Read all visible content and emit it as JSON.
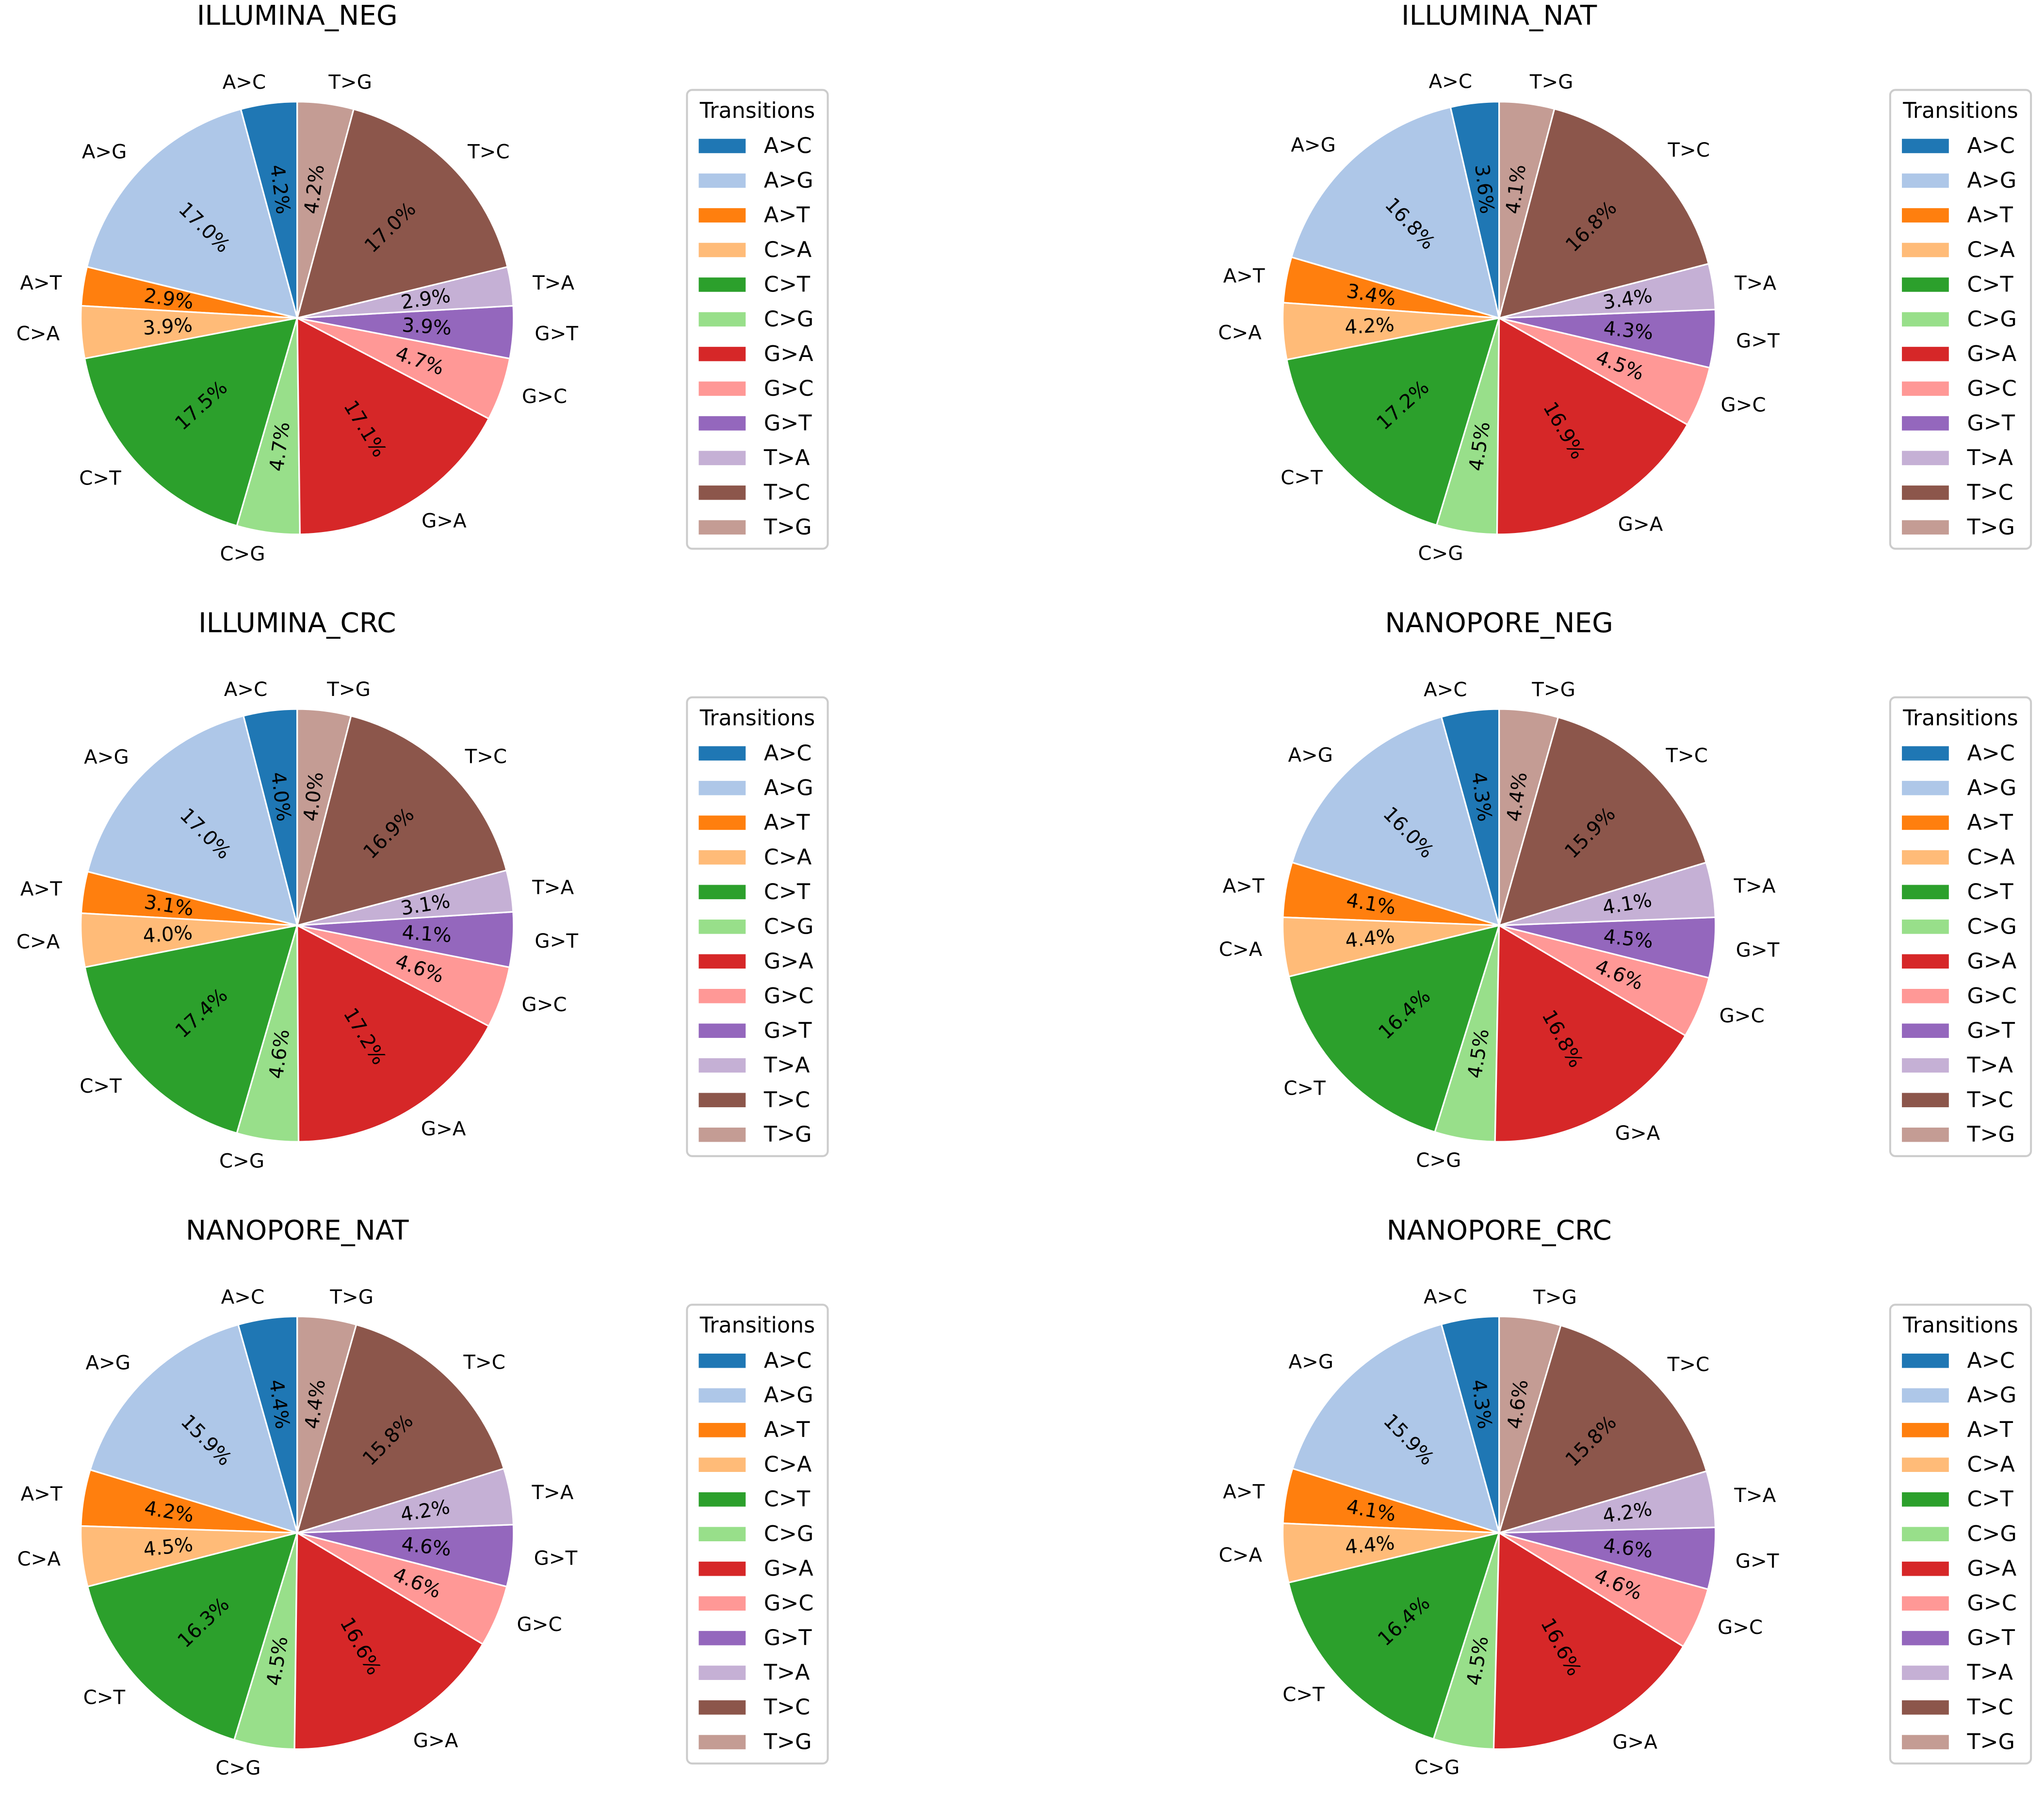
{
  "legend_title": "Transitions",
  "categories": [
    "A>C",
    "A>G",
    "A>T",
    "C>A",
    "C>T",
    "C>G",
    "G>A",
    "G>C",
    "G>T",
    "T>A",
    "T>C",
    "T>G"
  ],
  "colors": [
    "#1f77b4",
    "#aec7e8",
    "#ff7f0e",
    "#ffbb78",
    "#2ca02c",
    "#98df8a",
    "#d62728",
    "#ff9896",
    "#9467bd",
    "#c5b0d5",
    "#8c564b",
    "#c49c94"
  ],
  "chart_data": [
    {
      "type": "pie",
      "title": "ILLUMINA_NEG",
      "categories": [
        "A>C",
        "A>G",
        "A>T",
        "C>A",
        "C>T",
        "C>G",
        "G>A",
        "G>C",
        "G>T",
        "T>A",
        "T>C",
        "T>G"
      ],
      "values": [
        4.2,
        17.0,
        2.9,
        3.9,
        17.5,
        4.7,
        17.1,
        4.7,
        3.9,
        2.9,
        17.0,
        4.2
      ],
      "value_labels": [
        "4.2%",
        "17.0%",
        "2.9%",
        "3.9%",
        "17.5%",
        "4.7%",
        "17.1%",
        "4.7%",
        "3.9%",
        "2.9%",
        "17.0%",
        "4.2%"
      ],
      "start_angle_deg": 90,
      "direction": "counterclockwise",
      "legend_title": "Transitions",
      "legend_position": "right"
    },
    {
      "type": "pie",
      "title": "ILLUMINA_NAT",
      "categories": [
        "A>C",
        "A>G",
        "A>T",
        "C>A",
        "C>T",
        "C>G",
        "G>A",
        "G>C",
        "G>T",
        "T>A",
        "T>C",
        "T>G"
      ],
      "values": [
        3.6,
        16.8,
        3.4,
        4.2,
        17.2,
        4.5,
        16.9,
        4.5,
        4.3,
        3.4,
        16.8,
        4.1
      ],
      "value_labels": [
        "3.6%",
        "16.8%",
        "3.4%",
        "4.2%",
        "17.2%",
        "4.5%",
        "16.9%",
        "4.5%",
        "4.3%",
        "3.4%",
        "16.8%",
        "4.1%"
      ],
      "start_angle_deg": 90,
      "direction": "counterclockwise",
      "legend_title": "Transitions",
      "legend_position": "right"
    },
    {
      "type": "pie",
      "title": "ILLUMINA_CRC",
      "categories": [
        "A>C",
        "A>G",
        "A>T",
        "C>A",
        "C>T",
        "C>G",
        "G>A",
        "G>C",
        "G>T",
        "T>A",
        "T>C",
        "T>G"
      ],
      "values": [
        4.0,
        17.0,
        3.1,
        4.0,
        17.4,
        4.6,
        17.2,
        4.6,
        4.1,
        3.1,
        16.9,
        4.0
      ],
      "value_labels": [
        "4.0%",
        "17.0%",
        "3.1%",
        "4.0%",
        "17.4%",
        "4.6%",
        "17.2%",
        "4.6%",
        "4.1%",
        "3.1%",
        "16.9%",
        "4.0%"
      ],
      "start_angle_deg": 90,
      "direction": "counterclockwise",
      "legend_title": "Transitions",
      "legend_position": "right"
    },
    {
      "type": "pie",
      "title": "NANOPORE_NEG",
      "categories": [
        "A>C",
        "A>G",
        "A>T",
        "C>A",
        "C>T",
        "C>G",
        "G>A",
        "G>C",
        "G>T",
        "T>A",
        "T>C",
        "T>G"
      ],
      "values": [
        4.3,
        16.0,
        4.1,
        4.4,
        16.4,
        4.5,
        16.8,
        4.6,
        4.5,
        4.1,
        15.9,
        4.4
      ],
      "value_labels": [
        "4.3%",
        "16.0%",
        "4.1%",
        "4.4%",
        "16.4%",
        "4.5%",
        "16.8%",
        "4.6%",
        "4.5%",
        "4.1%",
        "15.9%",
        "4.4%"
      ],
      "start_angle_deg": 90,
      "direction": "counterclockwise",
      "legend_title": "Transitions",
      "legend_position": "right"
    },
    {
      "type": "pie",
      "title": "NANOPORE_NAT",
      "categories": [
        "A>C",
        "A>G",
        "A>T",
        "C>A",
        "C>T",
        "C>G",
        "G>A",
        "G>C",
        "G>T",
        "T>A",
        "T>C",
        "T>G"
      ],
      "values": [
        4.4,
        15.9,
        4.2,
        4.5,
        16.3,
        4.5,
        16.6,
        4.6,
        4.6,
        4.2,
        15.8,
        4.4
      ],
      "value_labels": [
        "4.4%",
        "15.9%",
        "4.2%",
        "4.5%",
        "16.3%",
        "4.5%",
        "16.6%",
        "4.6%",
        "4.6%",
        "4.2%",
        "15.8%",
        "4.4%"
      ],
      "start_angle_deg": 90,
      "direction": "counterclockwise",
      "legend_title": "Transitions",
      "legend_position": "right"
    },
    {
      "type": "pie",
      "title": "NANOPORE_CRC",
      "categories": [
        "A>C",
        "A>G",
        "A>T",
        "C>A",
        "C>T",
        "C>G",
        "G>A",
        "G>C",
        "G>T",
        "T>A",
        "T>C",
        "T>G"
      ],
      "values": [
        4.3,
        15.9,
        4.1,
        4.4,
        16.4,
        4.5,
        16.6,
        4.6,
        4.6,
        4.2,
        15.8,
        4.6
      ],
      "value_labels": [
        "4.3%",
        "15.9%",
        "4.1%",
        "4.4%",
        "16.4%",
        "4.5%",
        "16.6%",
        "4.6%",
        "4.6%",
        "4.2%",
        "15.8%",
        "4.6%"
      ],
      "start_angle_deg": 90,
      "direction": "counterclockwise",
      "legend_title": "Transitions",
      "legend_position": "right"
    }
  ]
}
